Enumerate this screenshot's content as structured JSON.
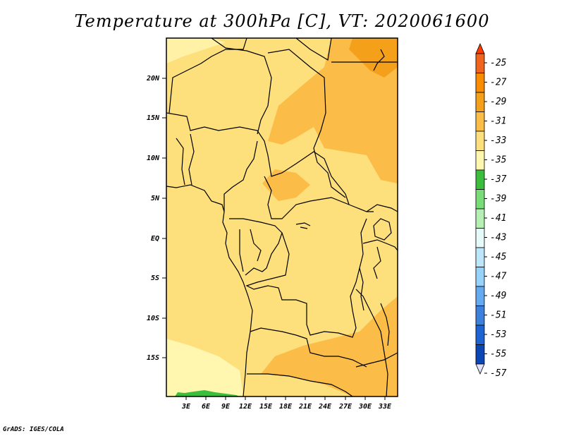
{
  "title": "Temperature at 300hPa [C], VT: 2020061600",
  "credit": "GrADS: IGES/COLA",
  "map": {
    "lat_ticks": [
      "20N",
      "15N",
      "10N",
      "5N",
      "EQ",
      "5S",
      "10S",
      "15S"
    ],
    "lon_ticks": [
      "3E",
      "6E",
      "9E",
      "12E",
      "15E",
      "18E",
      "21E",
      "24E",
      "27E",
      "30E",
      "33E"
    ],
    "fill_colors": {
      "-35_-33": "#fff6b0",
      "-33_-31": "#fddf7c",
      "-31_-29": "#fbbd48",
      "-29_-27": "#f5a01a",
      "-37_-35": "#3cbe3c"
    }
  },
  "colorbar": {
    "levels": [
      "-25",
      "-27",
      "-29",
      "-31",
      "-33",
      "-35",
      "-37",
      "-39",
      "-41",
      "-43",
      "-45",
      "-47",
      "-49",
      "-51",
      "-53",
      "-55",
      "-57"
    ],
    "colors": [
      "#f0641e",
      "#fa8c00",
      "#f5a01a",
      "#fbbd48",
      "#fddf7c",
      "#fff6b0",
      "#3cbe3c",
      "#78dc78",
      "#b4f0b4",
      "#e6fafa",
      "#bee6fa",
      "#96d2fa",
      "#64aaf0",
      "#3c82dc",
      "#1e64d2",
      "#0a46b4",
      "#0a1e78"
    ],
    "top_arrow_color": "#ff3c00",
    "bottom_arrow_color": "#e1e1fa"
  }
}
